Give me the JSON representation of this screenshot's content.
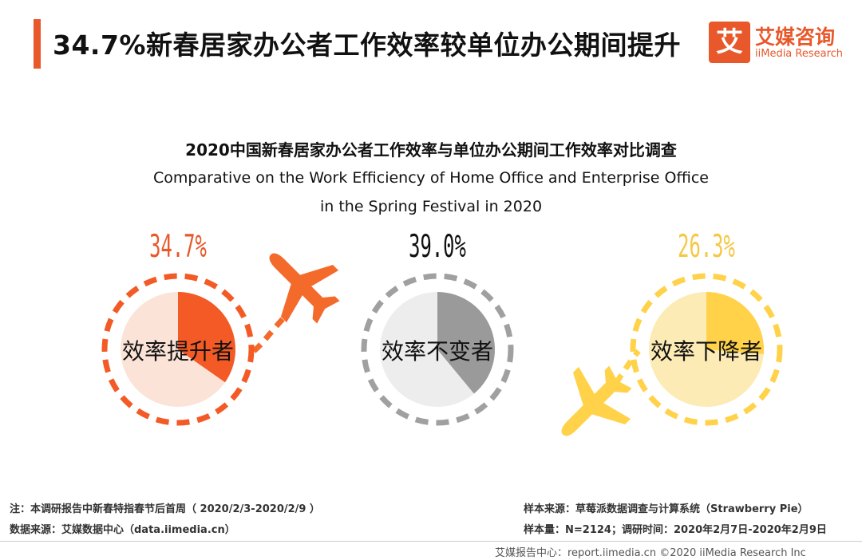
{
  "header": {
    "title": "34.7%新春居家办公者工作效率较单位办公期间提升",
    "logo_mark": "艾",
    "logo_cn": "艾媒咨询",
    "logo_en": "iiMedia Research"
  },
  "colors": {
    "accent": "#e8582a",
    "increase_fill": "#f35a25",
    "increase_bg": "#fbe3d7",
    "same_fill": "#9a9a9a",
    "same_bg": "#ededed",
    "decrease_fill": "#ffd24a",
    "decrease_bg": "#fdebb5",
    "increase_label": "#e8582a",
    "same_label": "#111111",
    "decrease_label": "#f5c842"
  },
  "chart_data": {
    "type": "pie",
    "title": "2020中国新春居家办公者工作效率与单位办公期间工作效率对比调查",
    "subtitle_line1": "Comparative  on the Work Efficiency  of Home Office  and Enterprise Office",
    "subtitle_line2": "in the Spring Festival in 2020",
    "slices": [
      {
        "label": "效率提升者",
        "value": 34.7,
        "value_label": "34.7%"
      },
      {
        "label": "效率不变者",
        "value": 39.0,
        "value_label": "39.0%"
      },
      {
        "label": "效率下降者",
        "value": 26.3,
        "value_label": "26.3%"
      }
    ],
    "unit": "%"
  },
  "footer": {
    "note": "注：本调研报告中新春特指春节后首周（ 2020/2/3-2020/2/9 ）",
    "data_source": "数据来源：艾媒数据中心（data.iimedia.cn）",
    "sample_source": "样本来源：草莓派数据调查与计算系统（Strawberry   Pie）",
    "sample_size": "样本量：N=2124；调研时间：2020年2月7日-2020年2月9日",
    "bottom": "艾媒报告中心：report.iimedia.cn  ©2020  iiMedia Research Inc"
  }
}
